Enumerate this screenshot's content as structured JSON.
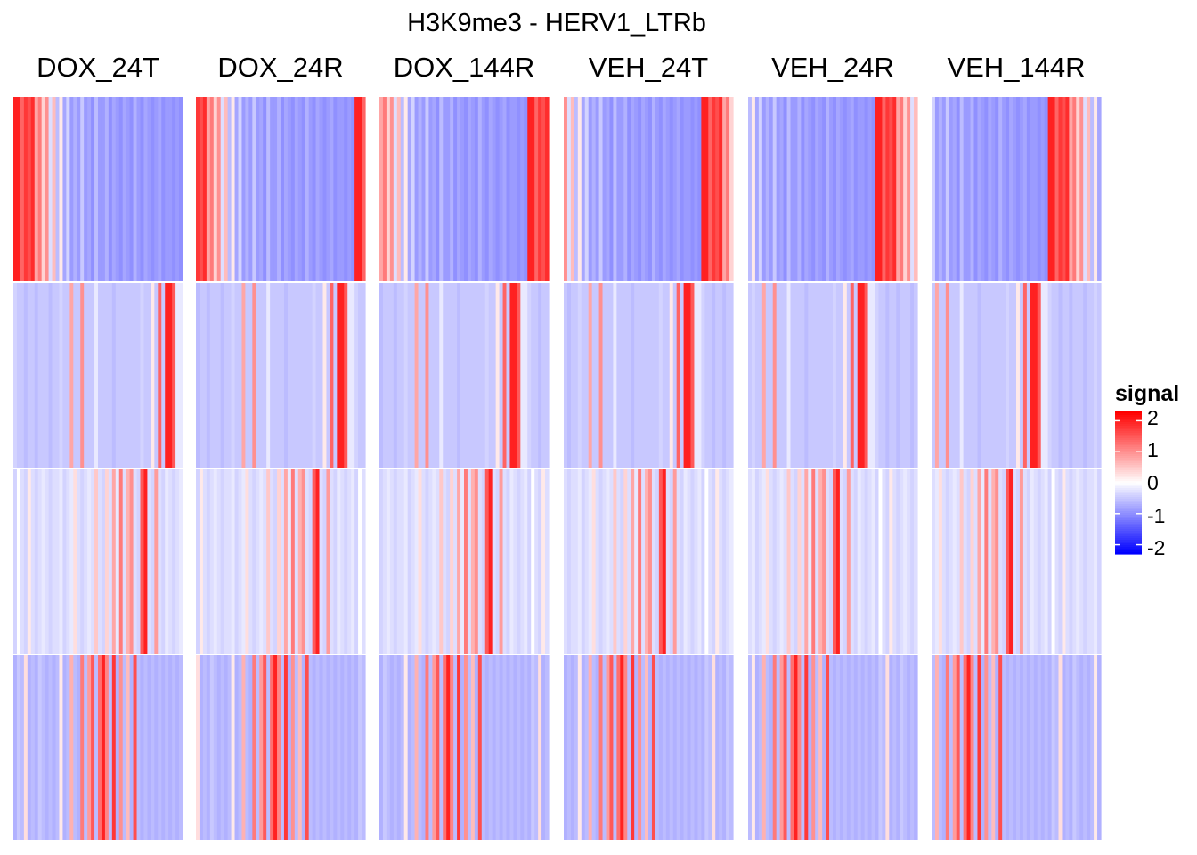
{
  "chart_data": {
    "type": "heatmap",
    "title": "H3K9me3 - HERV1_LTRb",
    "panels": [
      "DOX_24T",
      "DOX_24R",
      "DOX_144R",
      "VEH_24T",
      "VEH_24R",
      "VEH_144R"
    ],
    "row_clusters": 4,
    "legend": {
      "title": "signal",
      "ticks": [
        "2",
        "1",
        "0",
        "-1",
        "-2"
      ],
      "tick_values": [
        2,
        1,
        0,
        -1,
        -2
      ],
      "range": [
        -2.3,
        2.3
      ],
      "colors": {
        "low": "#0000ff",
        "mid": "#ffffff",
        "high": "#ff0000"
      },
      "placement": "right"
    },
    "columns_per_panel": 48,
    "signal_pattern_note": "cluster 1: high on left, low on right; cluster 2: mostly -0.5 with high signal far right; cluster 3: mixed near 0 with high band right of center; cluster 4: low with high band center-right",
    "cluster_profiles": [
      [
        2.0,
        2.0,
        1.4,
        1.8,
        1.6,
        1.9,
        0.8,
        1.2,
        0.4,
        1.0,
        -0.3,
        0.6,
        -0.6,
        0.2,
        -0.8,
        -0.4,
        -0.9,
        -0.7,
        -0.9,
        -0.5,
        -0.9,
        -0.8,
        -1.0,
        -0.6,
        -0.9,
        -0.9,
        -0.7,
        -1.0,
        -0.8,
        -0.9,
        -1.0,
        -0.8,
        -0.9,
        -1.0,
        -0.7,
        -0.9,
        -1.0,
        -0.8,
        -0.9,
        -1.0,
        -0.9,
        -0.8,
        -1.0,
        -0.9,
        -0.9,
        -1.0,
        -0.9,
        -1.0
      ],
      [
        -0.2,
        -0.4,
        -0.5,
        -0.5,
        -0.6,
        -0.5,
        -0.5,
        -0.6,
        -0.5,
        -0.5,
        -0.5,
        -0.6,
        -0.5,
        -0.5,
        -0.4,
        -0.5,
        -0.5,
        0.8,
        -0.5,
        -0.5,
        1.0,
        -0.5,
        -0.5,
        -0.5,
        -0.2,
        -0.5,
        -0.5,
        -0.5,
        -0.5,
        -0.6,
        -0.5,
        -0.5,
        -0.5,
        -0.5,
        -0.5,
        -0.5,
        -0.5,
        -0.4,
        -0.5,
        -0.5,
        0.2,
        -0.5,
        1.4,
        -0.5,
        2.0,
        2.0,
        1.5,
        -0.2
      ],
      [
        -0.3,
        -0.2,
        -0.4,
        0.0,
        -0.3,
        -0.4,
        0.2,
        -0.3,
        -0.4,
        -0.3,
        -0.2,
        -0.3,
        -0.4,
        -0.3,
        -0.3,
        -0.2,
        -0.4,
        -0.3,
        -0.2,
        0.3,
        -0.3,
        -0.4,
        -0.3,
        -0.2,
        -0.3,
        0.5,
        -0.3,
        -0.4,
        0.4,
        -0.3,
        0.8,
        -0.2,
        1.2,
        -0.3,
        0.7,
        1.0,
        -0.3,
        -0.4,
        1.5,
        2.0,
        -0.3,
        -0.4,
        0.9,
        -0.3,
        -0.4,
        -0.2,
        -0.3,
        -0.4
      ],
      [
        -0.6,
        -0.7,
        -0.6,
        -0.7,
        -0.5,
        -0.6,
        0.3,
        -0.7,
        -0.6,
        -0.7,
        -0.5,
        -0.6,
        -0.7,
        -0.6,
        -0.7,
        -0.6,
        0.2,
        -0.7,
        -0.6,
        0.7,
        -0.6,
        -0.7,
        1.2,
        -0.6,
        0.9,
        1.5,
        -0.6,
        1.3,
        2.0,
        1.1,
        -0.6,
        1.8,
        -0.7,
        1.0,
        -0.6,
        0.6,
        -0.7,
        1.6,
        -0.6,
        -0.7,
        -0.6,
        -0.7,
        -0.6,
        -0.7,
        -0.6,
        -0.7,
        -0.6,
        -0.7
      ]
    ]
  }
}
